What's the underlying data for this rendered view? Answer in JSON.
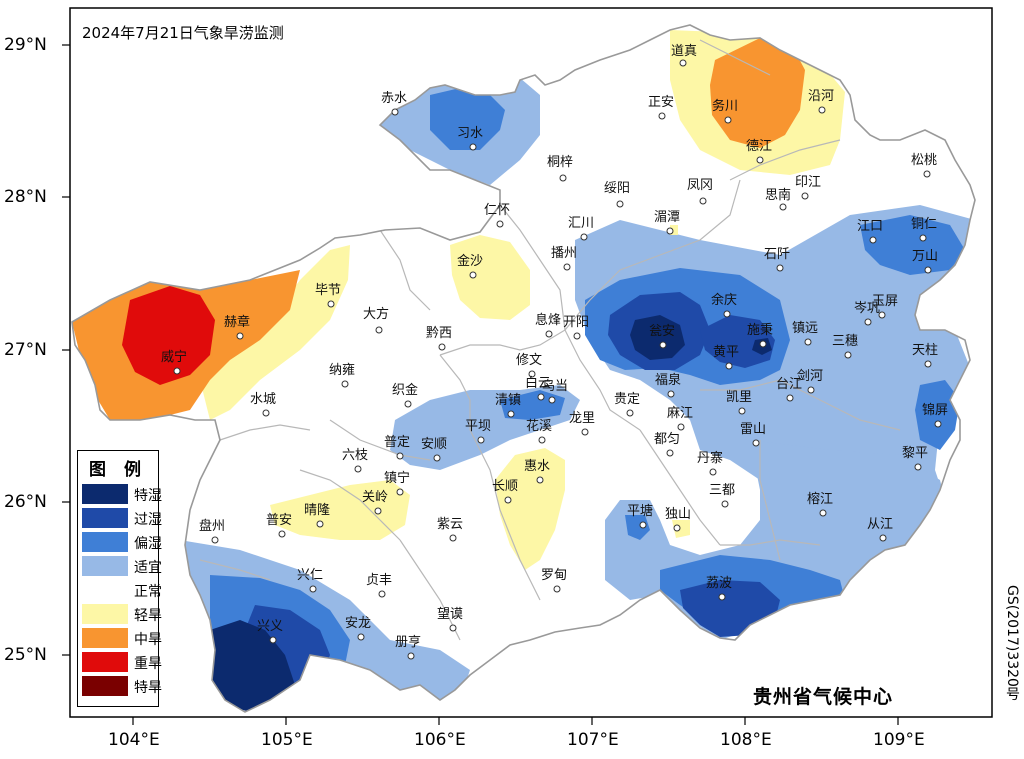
{
  "title": "2024年7月21日气象旱涝监测",
  "producer": "贵州省气候中心",
  "approval_code": "GS(2017)3320号",
  "axes": {
    "lat_labels": [
      "29°N",
      "28°N",
      "27°N",
      "26°N",
      "25°N"
    ],
    "lon_labels": [
      "104°E",
      "105°E",
      "106°E",
      "107°E",
      "108°E",
      "109°E"
    ]
  },
  "legend": {
    "title": "图 例",
    "items": [
      {
        "label": "特湿",
        "color": "#0c2a6e"
      },
      {
        "label": "过湿",
        "color": "#1f4aa8"
      },
      {
        "label": "偏湿",
        "color": "#3f7fd6"
      },
      {
        "label": "适宜",
        "color": "#97b9e6"
      },
      {
        "label": "正常",
        "color": "#ffffff"
      },
      {
        "label": "轻旱",
        "color": "#fdf7a6"
      },
      {
        "label": "中旱",
        "color": "#f89530"
      },
      {
        "label": "重旱",
        "color": "#e00b0b"
      },
      {
        "label": "特旱",
        "color": "#7a0000"
      }
    ]
  },
  "cities": [
    {
      "name": "道真"
    },
    {
      "name": "正安"
    },
    {
      "name": "务川"
    },
    {
      "name": "沿河"
    },
    {
      "name": "德江"
    },
    {
      "name": "赤水"
    },
    {
      "name": "习水"
    },
    {
      "name": "桐梓"
    },
    {
      "name": "绥阳"
    },
    {
      "name": "凤冈"
    },
    {
      "name": "思南"
    },
    {
      "name": "印江"
    },
    {
      "name": "松桃"
    },
    {
      "name": "仁怀"
    },
    {
      "name": "湄潭"
    },
    {
      "name": "江口"
    },
    {
      "name": "铜仁"
    },
    {
      "name": "汇川"
    },
    {
      "name": "播州"
    },
    {
      "name": "石阡"
    },
    {
      "name": "万山"
    },
    {
      "name": "金沙"
    },
    {
      "name": "毕节"
    },
    {
      "name": "余庆"
    },
    {
      "name": "岑巩"
    },
    {
      "name": "玉屏"
    },
    {
      "name": "赫章"
    },
    {
      "name": "大方"
    },
    {
      "name": "息烽"
    },
    {
      "name": "开阳"
    },
    {
      "name": "瓮安"
    },
    {
      "name": "施秉"
    },
    {
      "name": "镇远"
    },
    {
      "name": "黔西"
    },
    {
      "name": "三穗"
    },
    {
      "name": "天柱"
    },
    {
      "name": "威宁"
    },
    {
      "name": "黄平"
    },
    {
      "name": "纳雍"
    },
    {
      "name": "修文"
    },
    {
      "name": "白云"
    },
    {
      "name": "剑河"
    },
    {
      "name": "台江"
    },
    {
      "name": "福泉"
    },
    {
      "name": "织金"
    },
    {
      "name": "清镇"
    },
    {
      "name": "乌当"
    },
    {
      "name": "水城"
    },
    {
      "name": "贵定"
    },
    {
      "name": "凯里"
    },
    {
      "name": "锦屏"
    },
    {
      "name": "平坝"
    },
    {
      "name": "花溪"
    },
    {
      "name": "龙里"
    },
    {
      "name": "麻江"
    },
    {
      "name": "普定"
    },
    {
      "name": "安顺"
    },
    {
      "name": "雷山"
    },
    {
      "name": "都匀"
    },
    {
      "name": "六枝"
    },
    {
      "name": "黎平"
    },
    {
      "name": "丹寨"
    },
    {
      "name": "惠水"
    },
    {
      "name": "镇宁"
    },
    {
      "name": "长顺"
    },
    {
      "name": "三都"
    },
    {
      "name": "关岭"
    },
    {
      "name": "晴隆"
    },
    {
      "name": "榕江"
    },
    {
      "name": "普安"
    },
    {
      "name": "紫云"
    },
    {
      "name": "平塘"
    },
    {
      "name": "独山"
    },
    {
      "name": "从江"
    },
    {
      "name": "盘州"
    },
    {
      "name": "罗甸"
    },
    {
      "name": "兴仁"
    },
    {
      "name": "贞丰"
    },
    {
      "name": "荔波"
    },
    {
      "name": "望谟"
    },
    {
      "name": "安龙"
    },
    {
      "name": "兴义"
    },
    {
      "name": "册亨"
    }
  ]
}
